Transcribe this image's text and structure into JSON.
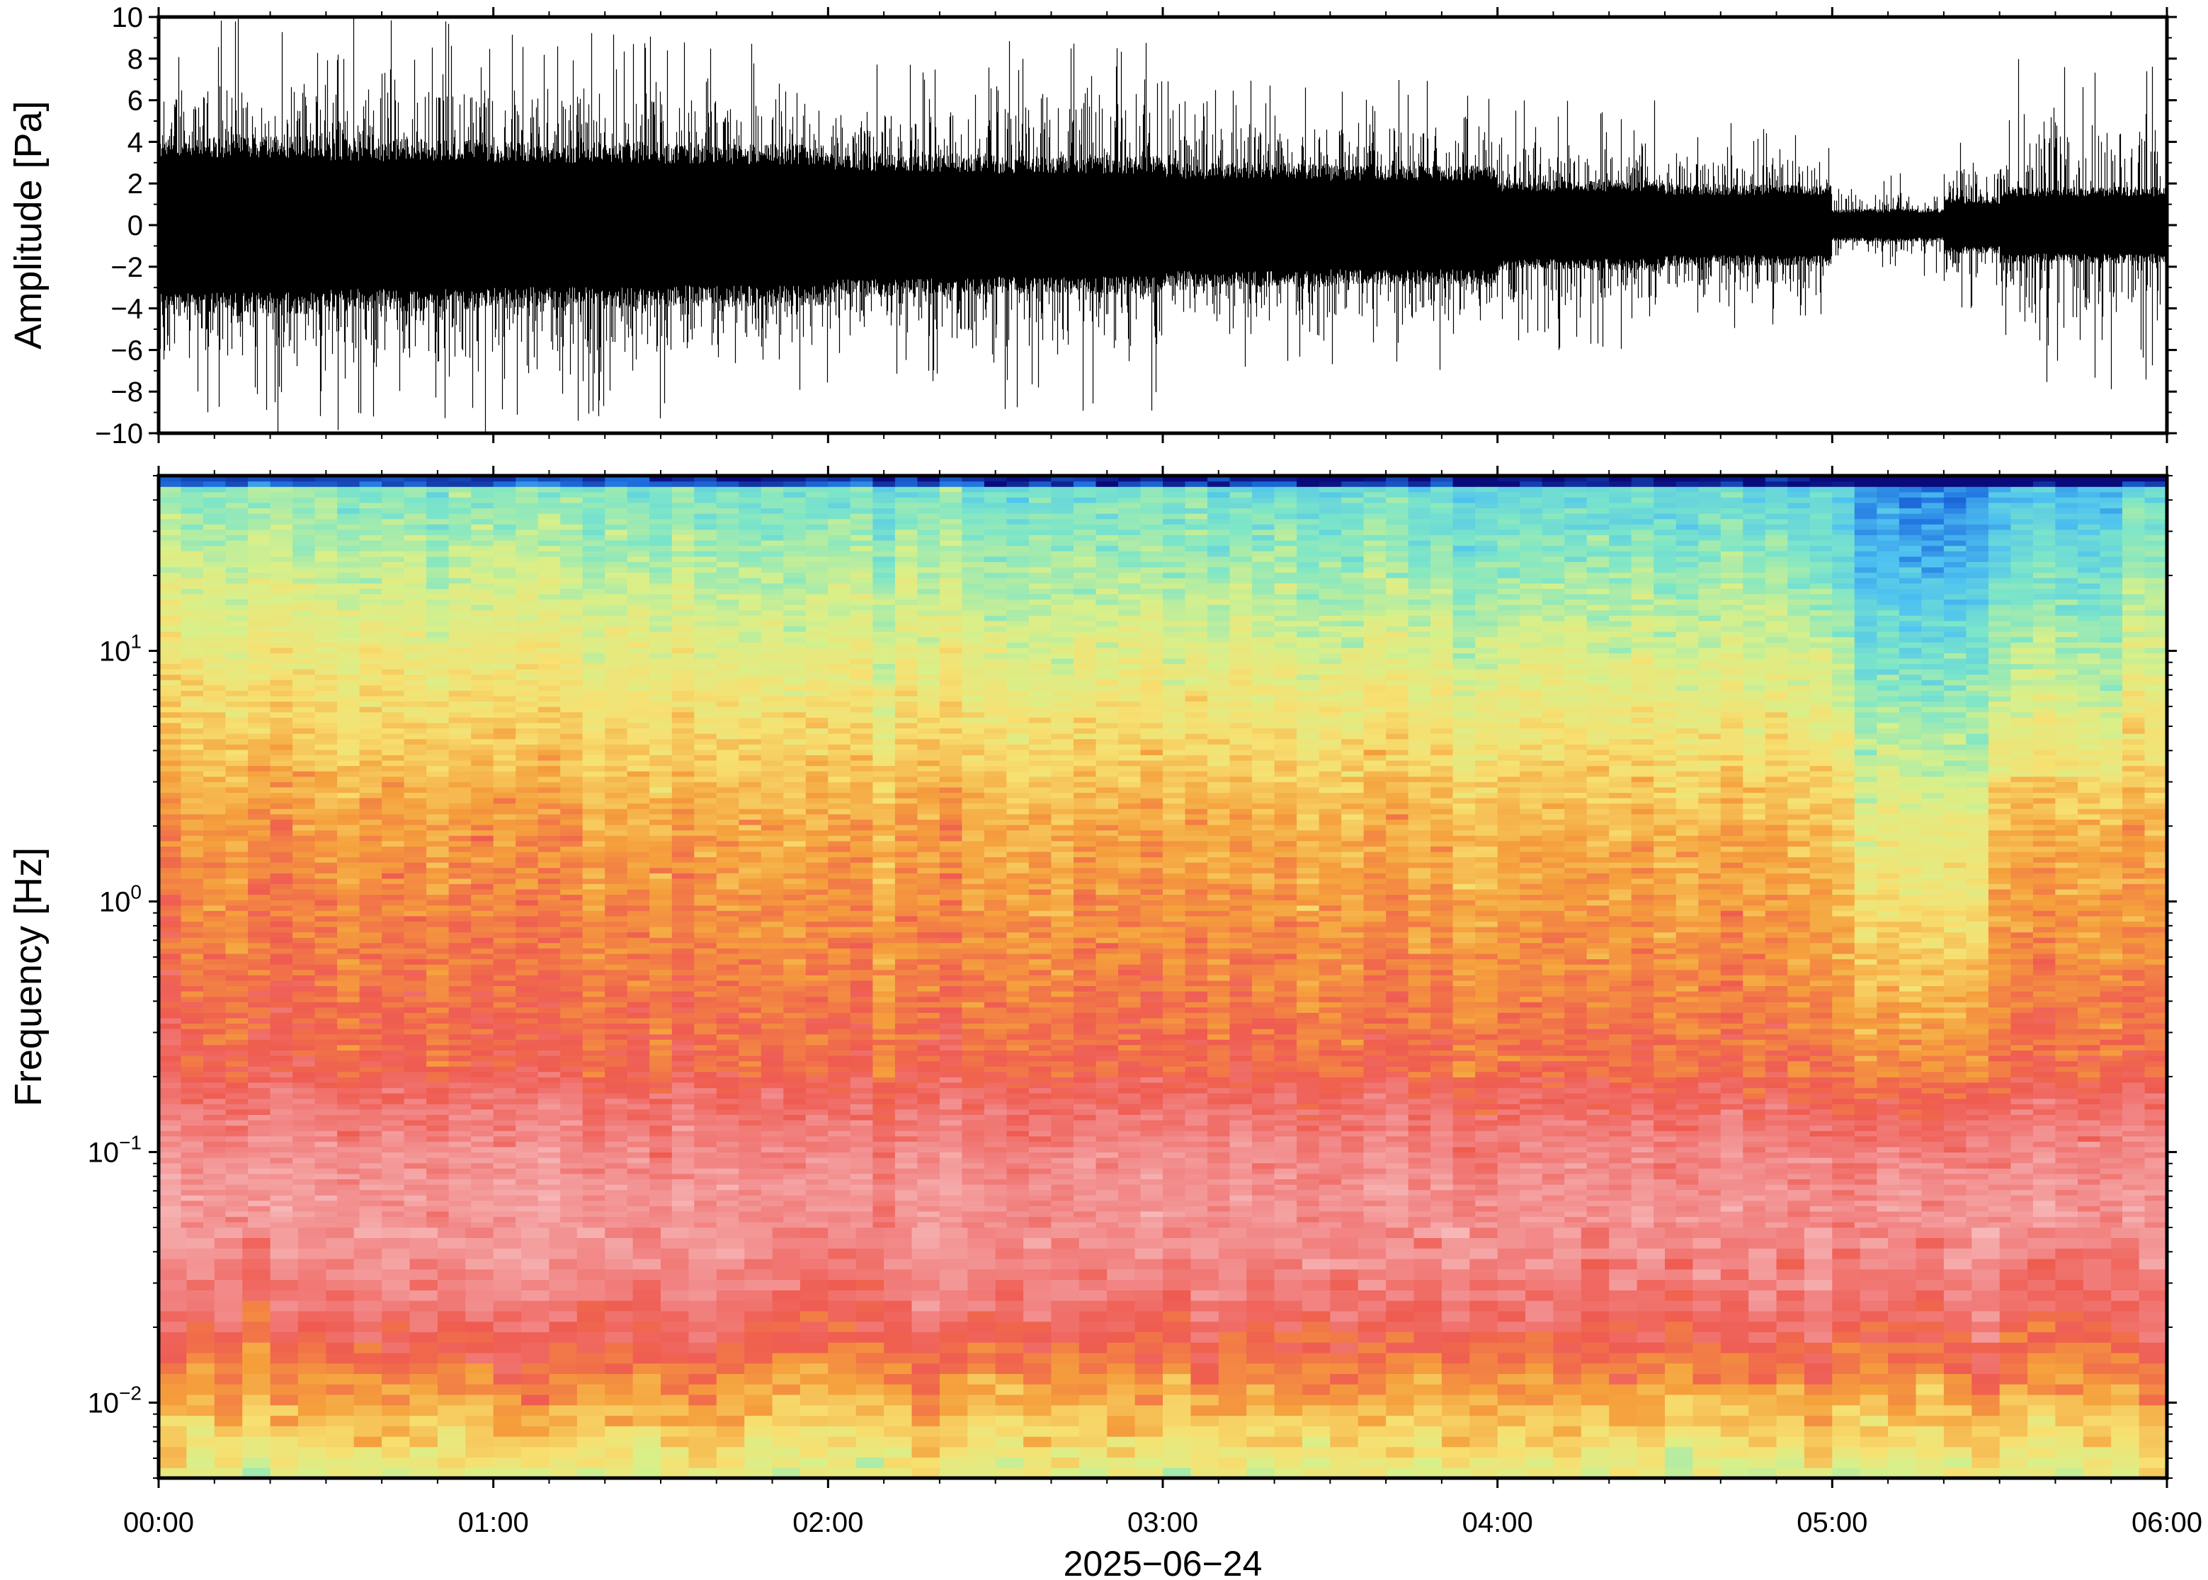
{
  "chart_data": [
    {
      "type": "line",
      "panel": "waveform",
      "ylabel": "Amplitude [Pa]",
      "ylim": [
        -10,
        10
      ],
      "yticks": [
        -10,
        -8,
        -6,
        -4,
        -2,
        0,
        2,
        4,
        6,
        8,
        10
      ],
      "ytick_labels": [
        "−10",
        "−8",
        "−6",
        "−4",
        "−2",
        "0",
        "2",
        "4",
        "6",
        "8",
        "10"
      ],
      "x_range": [
        "00:00",
        "06:00"
      ],
      "envelope_segments": [
        {
          "t_start": "00:00",
          "t_end": "00:30",
          "core": 3.8,
          "peak": 10
        },
        {
          "t_start": "00:30",
          "t_end": "01:00",
          "core": 3.6,
          "peak": 10
        },
        {
          "t_start": "01:00",
          "t_end": "01:30",
          "core": 3.5,
          "peak": 9.5
        },
        {
          "t_start": "01:30",
          "t_end": "02:00",
          "core": 3.4,
          "peak": 9
        },
        {
          "t_start": "02:00",
          "t_end": "02:30",
          "core": 3.0,
          "peak": 8
        },
        {
          "t_start": "02:30",
          "t_end": "03:00",
          "core": 2.9,
          "peak": 9.5
        },
        {
          "t_start": "03:00",
          "t_end": "03:30",
          "core": 2.6,
          "peak": 7
        },
        {
          "t_start": "03:30",
          "t_end": "04:00",
          "core": 2.5,
          "peak": 7
        },
        {
          "t_start": "04:00",
          "t_end": "04:30",
          "core": 1.9,
          "peak": 6
        },
        {
          "t_start": "04:30",
          "t_end": "05:00",
          "core": 1.7,
          "peak": 5
        },
        {
          "t_start": "05:00",
          "t_end": "05:20",
          "core": 0.7,
          "peak": 2.5
        },
        {
          "t_start": "05:20",
          "t_end": "05:30",
          "core": 1.2,
          "peak": 4
        },
        {
          "t_start": "05:30",
          "t_end": "06:00",
          "core": 1.6,
          "peak": 8
        }
      ]
    },
    {
      "type": "heatmap",
      "panel": "spectrogram",
      "ylabel": "Frequency [Hz]",
      "yscale": "log",
      "ylim": [
        0.005,
        50
      ],
      "yticks": [
        {
          "value": 10,
          "base": "10",
          "exp": "1"
        },
        {
          "value": 1,
          "base": "10",
          "exp": "0"
        },
        {
          "value": 0.1,
          "base": "10",
          "exp": "−1"
        },
        {
          "value": 0.01,
          "base": "10",
          "exp": "−2"
        }
      ],
      "xlabel": "2025−06−24",
      "xticks": [
        "00:00",
        "01:00",
        "02:00",
        "03:00",
        "04:00",
        "05:00",
        "06:00"
      ],
      "colormap": [
        "#0a0a7a",
        "#1e6fe0",
        "#4fc3f0",
        "#7de6c8",
        "#d8f08a",
        "#f7e071",
        "#f5a03c",
        "#ef5b50",
        "#f28a8a",
        "#f7b7b7"
      ],
      "quiet_window": [
        "05:05",
        "05:27"
      ]
    }
  ]
}
